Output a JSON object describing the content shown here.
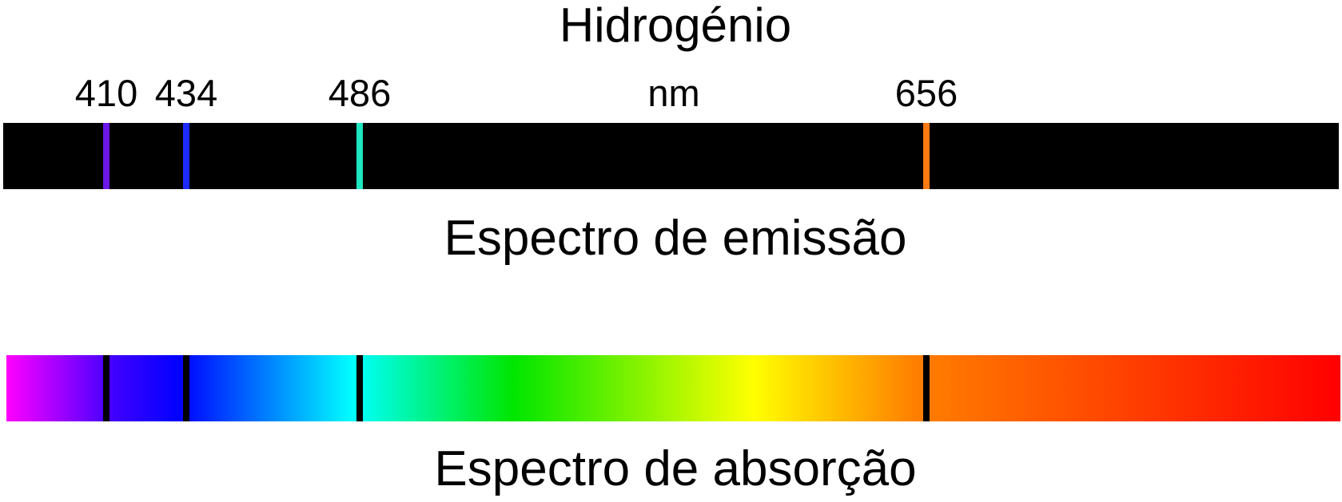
{
  "title": "Hidrogénio",
  "unit": "nm",
  "emission_label": "Espectro de emissão",
  "absorption_label": "Espectro de absorção",
  "lines": [
    {
      "wavelength": "410",
      "color": "#6b17e6"
    },
    {
      "wavelength": "434",
      "color": "#1c2bff"
    },
    {
      "wavelength": "486",
      "color": "#1ee6c0"
    },
    {
      "wavelength": "656",
      "color": "#ff7a12"
    }
  ],
  "absorption_line_color": "#000000",
  "spectrum_colors": [
    "#ff00ff",
    "#4000ff",
    "#0000ff",
    "#00ffff",
    "#00e600",
    "#ffff00",
    "#ff8000",
    "#ff0000"
  ],
  "background_color": "#000000"
}
